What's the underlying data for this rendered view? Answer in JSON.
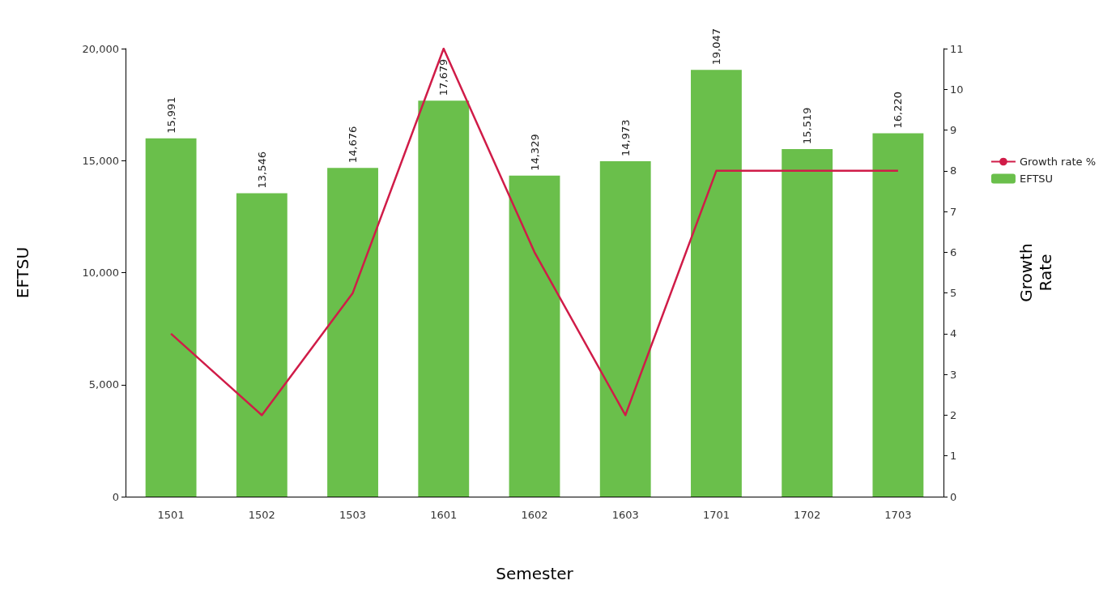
{
  "chart_data": {
    "type": "bar",
    "xlabel": "Semester",
    "ylabel": "EFTSU",
    "y2label": "Growth Rate",
    "categories": [
      "1501",
      "1502",
      "1503",
      "1601",
      "1602",
      "1603",
      "1701",
      "1702",
      "1703"
    ],
    "series": [
      {
        "name": "Growth rate %",
        "type": "line",
        "axis": "y2",
        "color": "#d01c48",
        "values": [
          4,
          2,
          5,
          11,
          6,
          2,
          8,
          8,
          8
        ]
      },
      {
        "name": "EFTSU",
        "color": "#6abf4b",
        "values": [
          15991,
          13546,
          14676,
          17679,
          14329,
          14973,
          19047,
          15519,
          16220
        ],
        "value_labels": [
          "15,991",
          "13,546",
          "14,676",
          "17,679",
          "14,329",
          "14,973",
          "19,047",
          "15,519",
          "16,220"
        ]
      }
    ],
    "ylim": [
      0,
      20000
    ],
    "yticks": [
      {
        "value": 0,
        "label": "0"
      },
      {
        "value": 5000,
        "label": "5,000"
      },
      {
        "value": 10000,
        "label": "10,000"
      },
      {
        "value": 15000,
        "label": "15,000"
      },
      {
        "value": 20000,
        "label": "20,000"
      }
    ],
    "y2lim": [
      0,
      11
    ],
    "y2ticks": [
      0,
      1,
      2,
      3,
      4,
      5,
      6,
      7,
      8,
      9,
      10,
      11
    ],
    "grid": false,
    "legend": "right",
    "marker": "none",
    "line_style": "solid"
  }
}
